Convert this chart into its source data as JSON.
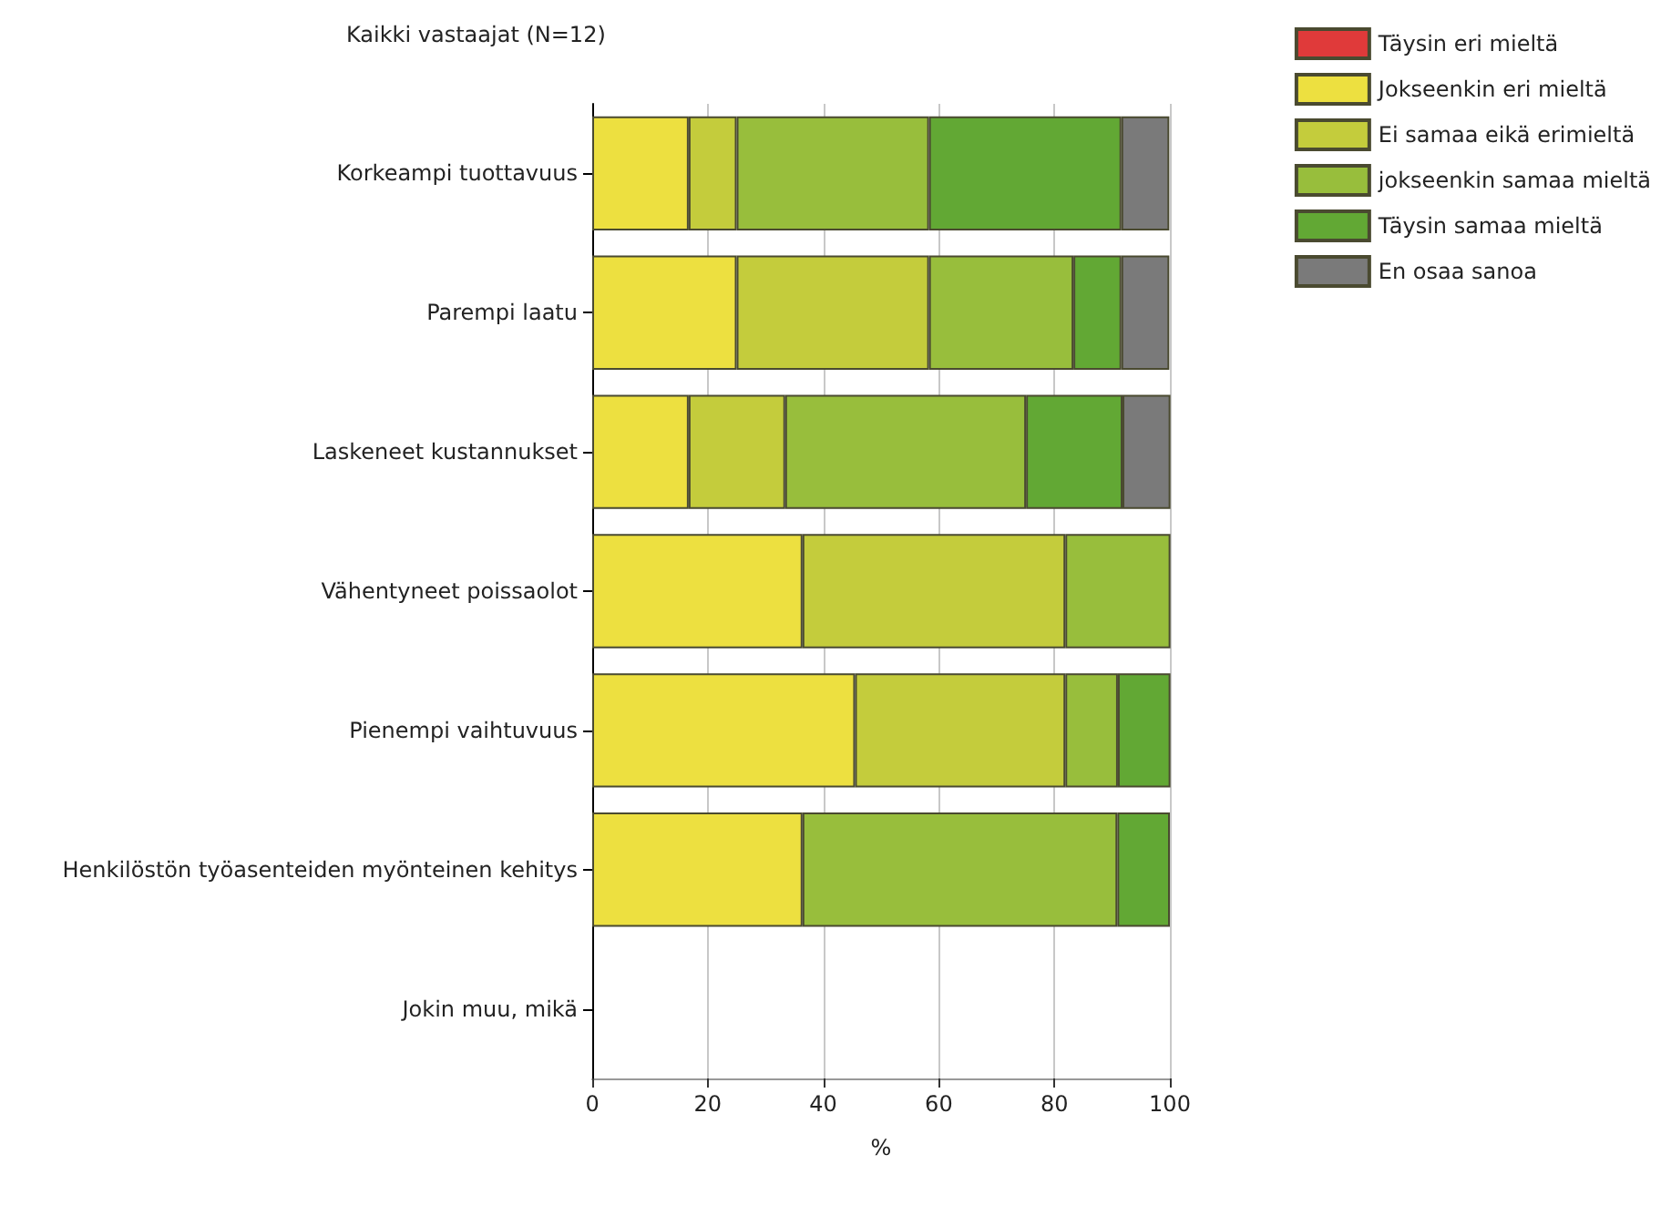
{
  "chart_data": {
    "type": "bar",
    "orientation": "horizontal",
    "stacked": true,
    "title": "Kaikki vastaajat (N=12)",
    "xlabel": "%",
    "categories": [
      "Korkeampi tuottavuus",
      "Parempi laatu",
      "Laskeneet kustannukset",
      "Vähentyneet poissaolot",
      "Pienempi vaihtuvuus",
      "Henkilöstön työasenteiden myönteinen kehitys",
      "Jokin muu, mikä"
    ],
    "series": [
      {
        "name": "Täysin eri mieltä",
        "color": "#e03a3a",
        "values": [
          0,
          0,
          0,
          0,
          0,
          0,
          null
        ]
      },
      {
        "name": "Jokseenkin eri mieltä",
        "color": "#ede040",
        "values": [
          16.7,
          25,
          16.7,
          36.4,
          45.5,
          36.4,
          null
        ]
      },
      {
        "name": "Ei samaa eikä erimieltä",
        "color": "#c4cc3c",
        "values": [
          8.3,
          33.3,
          16.7,
          45.5,
          36.4,
          0,
          null
        ]
      },
      {
        "name": "jokseenkin samaa mieltä",
        "color": "#98be3c",
        "values": [
          33.3,
          25,
          41.7,
          18.2,
          9.1,
          54.5,
          null
        ]
      },
      {
        "name": "Täysin samaa mieltä",
        "color": "#62a834",
        "values": [
          33.3,
          8.3,
          16.7,
          0,
          9.1,
          9.1,
          null
        ]
      },
      {
        "name": "En osaa sanoa",
        "color": "#7a7a7a",
        "values": [
          8.3,
          8.3,
          8.3,
          0,
          0,
          0,
          null
        ]
      }
    ],
    "xlim": [
      0,
      100
    ],
    "xticks": [
      0,
      20,
      40,
      60,
      80,
      100
    ],
    "grid": "x",
    "legend": "top right"
  }
}
